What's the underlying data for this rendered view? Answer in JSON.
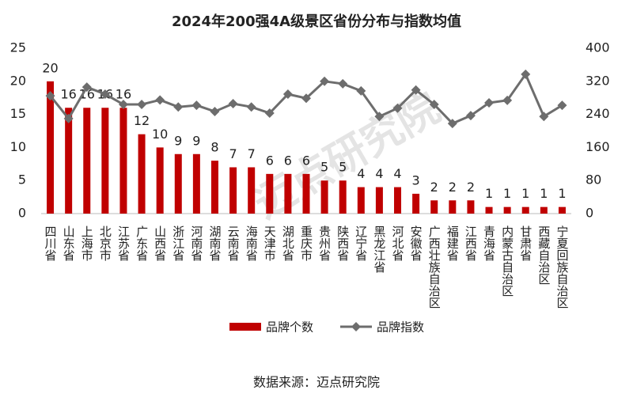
{
  "chart_data": {
    "type": "bar-line",
    "title": "2024年200强4A级景区省份分布与指数均值",
    "watermark": "迈点研究院",
    "source": "数据来源：迈点研究院",
    "categories": [
      "四川省",
      "山东省",
      "上海市",
      "北京市",
      "江苏省",
      "广东省",
      "山西省",
      "浙江省",
      "河南省",
      "湖南省",
      "云南省",
      "海南省",
      "天津市",
      "湖北省",
      "重庆市",
      "贵州省",
      "陕西省",
      "辽宁省",
      "黑龙江省",
      "河北省",
      "安徽省",
      "广西壮族自治区",
      "福建省",
      "江西省",
      "青海省",
      "内蒙古自治区",
      "甘肃省",
      "西藏自治区",
      "宁夏回族自治区"
    ],
    "series": [
      {
        "name": "品牌个数",
        "type": "bar",
        "color": "#c00000",
        "values": [
          20,
          16,
          16,
          16,
          16,
          12,
          10,
          9,
          9,
          8,
          7,
          7,
          6,
          6,
          6,
          5,
          5,
          4,
          4,
          4,
          3,
          2,
          2,
          2,
          1,
          1,
          1,
          1,
          1
        ]
      },
      {
        "name": "品牌指数",
        "type": "line",
        "axis": "y2",
        "color": "#6d6d6d",
        "values": [
          285,
          230,
          306,
          289,
          264,
          264,
          275,
          258,
          262,
          247,
          266,
          258,
          243,
          289,
          279,
          320,
          314,
          297,
          235,
          255,
          299,
          264,
          218,
          237,
          268,
          274,
          337,
          235,
          262
        ]
      }
    ],
    "ylim": [
      0,
      25
    ],
    "yticks": [
      0,
      5,
      10,
      15,
      20,
      25
    ],
    "y2lim": [
      0,
      400
    ],
    "y2ticks": [
      0,
      80,
      160,
      240,
      320,
      400
    ],
    "legend": "bottom"
  }
}
